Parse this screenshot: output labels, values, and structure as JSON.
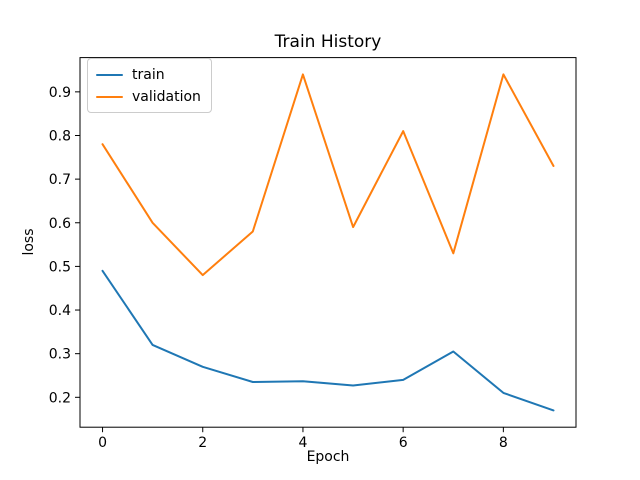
{
  "figure": {
    "title": "Train History",
    "xlabel": "Epoch",
    "ylabel": "loss"
  },
  "legend": {
    "entries": [
      {
        "label": "train",
        "color": "#1f77b4"
      },
      {
        "label": "validation",
        "color": "#ff7f0e"
      }
    ]
  },
  "chart_data": {
    "type": "line",
    "title": "Train History",
    "xlabel": "Epoch",
    "ylabel": "loss",
    "x": [
      0,
      1,
      2,
      3,
      4,
      5,
      6,
      7,
      8,
      9
    ],
    "series": [
      {
        "name": "train",
        "color": "#1f77b4",
        "values": [
          0.49,
          0.32,
          0.27,
          0.235,
          0.237,
          0.227,
          0.24,
          0.305,
          0.21,
          0.17
        ]
      },
      {
        "name": "validation",
        "color": "#ff7f0e",
        "values": [
          0.78,
          0.6,
          0.48,
          0.58,
          0.94,
          0.59,
          0.81,
          0.53,
          0.94,
          0.73
        ]
      }
    ],
    "xlim": [
      -0.45,
      9.45
    ],
    "ylim": [
      0.1315,
      0.9785
    ],
    "xticks": [
      {
        "value": 0,
        "label": "0"
      },
      {
        "value": 2,
        "label": "2"
      },
      {
        "value": 4,
        "label": "4"
      },
      {
        "value": 6,
        "label": "6"
      },
      {
        "value": 8,
        "label": "8"
      }
    ],
    "yticks": [
      {
        "value": 0.2,
        "label": "0.2"
      },
      {
        "value": 0.3,
        "label": "0.3"
      },
      {
        "value": 0.4,
        "label": "0.4"
      },
      {
        "value": 0.5,
        "label": "0.5"
      },
      {
        "value": 0.6,
        "label": "0.6"
      },
      {
        "value": 0.7,
        "label": "0.7"
      },
      {
        "value": 0.8,
        "label": "0.8"
      },
      {
        "value": 0.9,
        "label": "0.9"
      }
    ],
    "grid": false,
    "legend_position": "upper left",
    "background_color": "#ffffff",
    "axis_color": "#000000",
    "legend_border_color": "#cccccc"
  }
}
